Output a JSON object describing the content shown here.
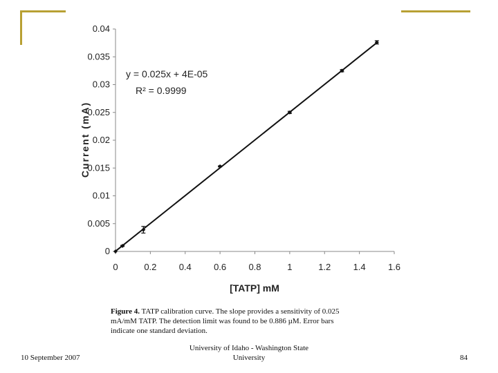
{
  "footer": {
    "date": "10 September 2007",
    "institution_line1": "University of Idaho - Washington State",
    "institution_line2": "University",
    "page_number": "84"
  },
  "caption": {
    "label": "Figure 4.",
    "line1": "TATP calibration curve.  The slope provides a sensitivity of 0.025",
    "line2": "mA/mM TATP.  The detection limit was found to be 0.886 µM.  Error bars",
    "line3": "indicate one standard deviation."
  },
  "colors": {
    "accent": "#b8a033",
    "series": "#111111"
  },
  "chart_data": {
    "type": "scatter",
    "xlabel": "[TATP] mM",
    "ylabel": "Current (mA)",
    "xlim": [
      0,
      1.6
    ],
    "ylim": [
      0,
      0.04
    ],
    "x_ticks": [
      "0",
      "0.2",
      "0.4",
      "0.6",
      "0.8",
      "1",
      "1.2",
      "1.4",
      "1.6"
    ],
    "y_ticks": [
      "0",
      "0.005",
      "0.01",
      "0.015",
      "0.02",
      "0.025",
      "0.03",
      "0.035",
      "0.04"
    ],
    "grid": false,
    "trendline": {
      "equation": "y = 0.025x + 4E-05",
      "r_squared": "R² = 0.9999",
      "slope": 0.025,
      "intercept": 4e-05
    },
    "series": [
      {
        "x": [
          0,
          0.04,
          0.16,
          0.6,
          1.0,
          1.3,
          1.5
        ],
        "y": [
          0,
          0.001,
          0.0039,
          0.0153,
          0.025,
          0.0325,
          0.0376
        ],
        "error": [
          0,
          0.0001,
          0.0006,
          0.0001,
          0.0002,
          0.0002,
          0.0003
        ]
      }
    ]
  }
}
